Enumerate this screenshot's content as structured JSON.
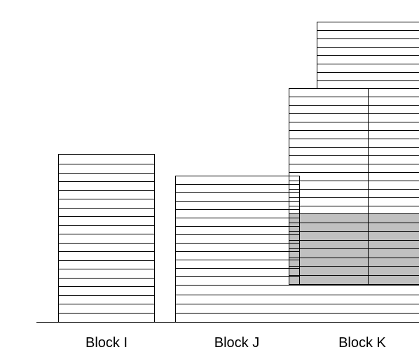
{
  "labels": {
    "block_i": "Block I",
    "block_j": "Block J",
    "block_k": "Block K"
  },
  "colors": {
    "stroke": "#000000",
    "fill": "#ffffff",
    "highlight": "#c0c0c0"
  },
  "blocks": {
    "block_i": {
      "floors": 19
    },
    "block_j": {
      "floors": 17
    },
    "block_k_tower": {
      "floors": 36,
      "highlighted_floors": 8
    }
  }
}
